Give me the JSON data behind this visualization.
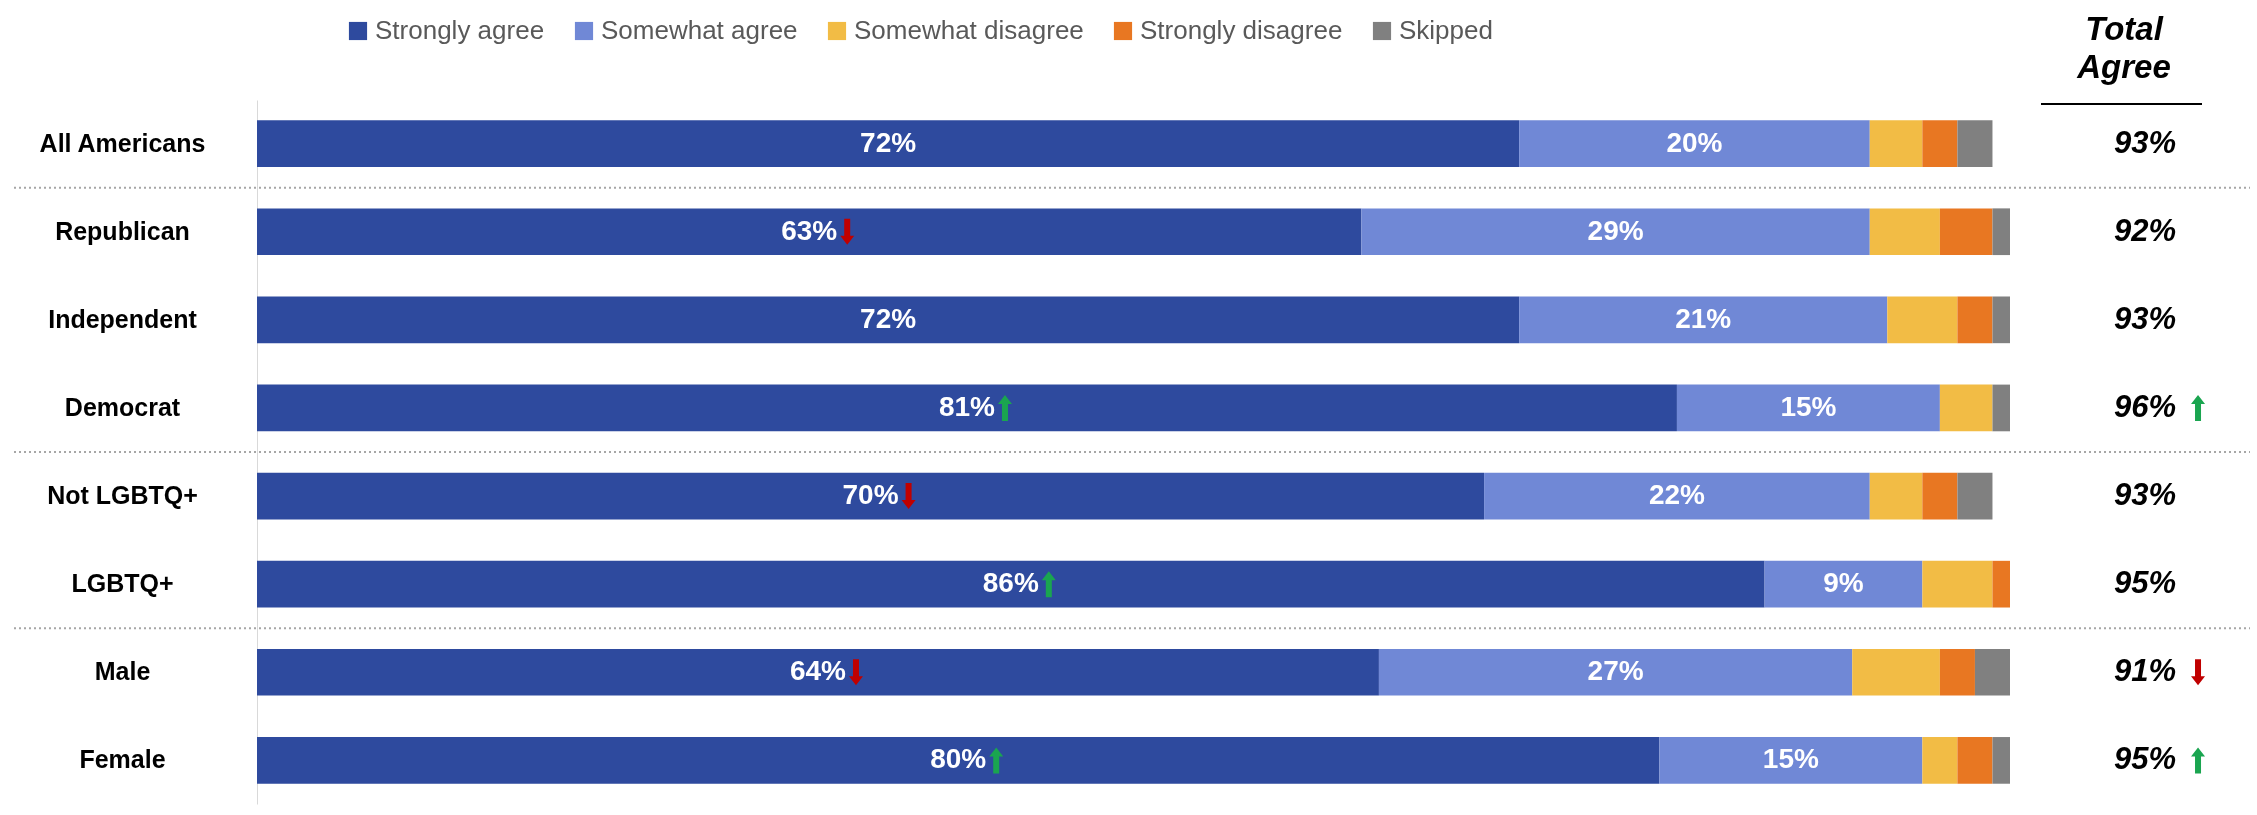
{
  "chart_data": {
    "type": "bar",
    "orientation": "horizontal",
    "stacked": true,
    "categories": [
      "All Americans",
      "Republican",
      "Independent",
      "Democrat",
      "Not LGBTQ+",
      "LGBTQ+",
      "Male",
      "Female"
    ],
    "xlim": [
      0,
      100
    ],
    "tick_labels": "y",
    "legend": "top",
    "annotations": [
      "Total Agree",
      "93%",
      "92%",
      "93%",
      "96%",
      "93%",
      "95%",
      "91%",
      "95%"
    ],
    "series": [
      {
        "name": "Strongly agree",
        "color": "#2e4a9e",
        "values": [
          72,
          63,
          72,
          81,
          70,
          86,
          64,
          80
        ],
        "value_labels": [
          "72%",
          "63%",
          "72%",
          "81%",
          "70%",
          "86%",
          "64%",
          "80%"
        ]
      },
      {
        "name": "Somewhat agree",
        "color": "#7088d6",
        "values": [
          20,
          29,
          21,
          15,
          22,
          9,
          27,
          15
        ],
        "value_labels": [
          "20%",
          "29%",
          "21%",
          "15%",
          "22%",
          "9%",
          "27%",
          "15%"
        ]
      },
      {
        "name": "Somewhat disagree",
        "color": "#f2bc45",
        "values": [
          3,
          4,
          4,
          3,
          3,
          4,
          5,
          2
        ]
      },
      {
        "name": "Strongly disagree",
        "color": "#e87722",
        "values": [
          2,
          3,
          2,
          0,
          2,
          1,
          2,
          2
        ]
      },
      {
        "name": "Skipped",
        "color": "#808080",
        "values": [
          2,
          1,
          1,
          1,
          2,
          0,
          2,
          1
        ]
      }
    ]
  }
}
